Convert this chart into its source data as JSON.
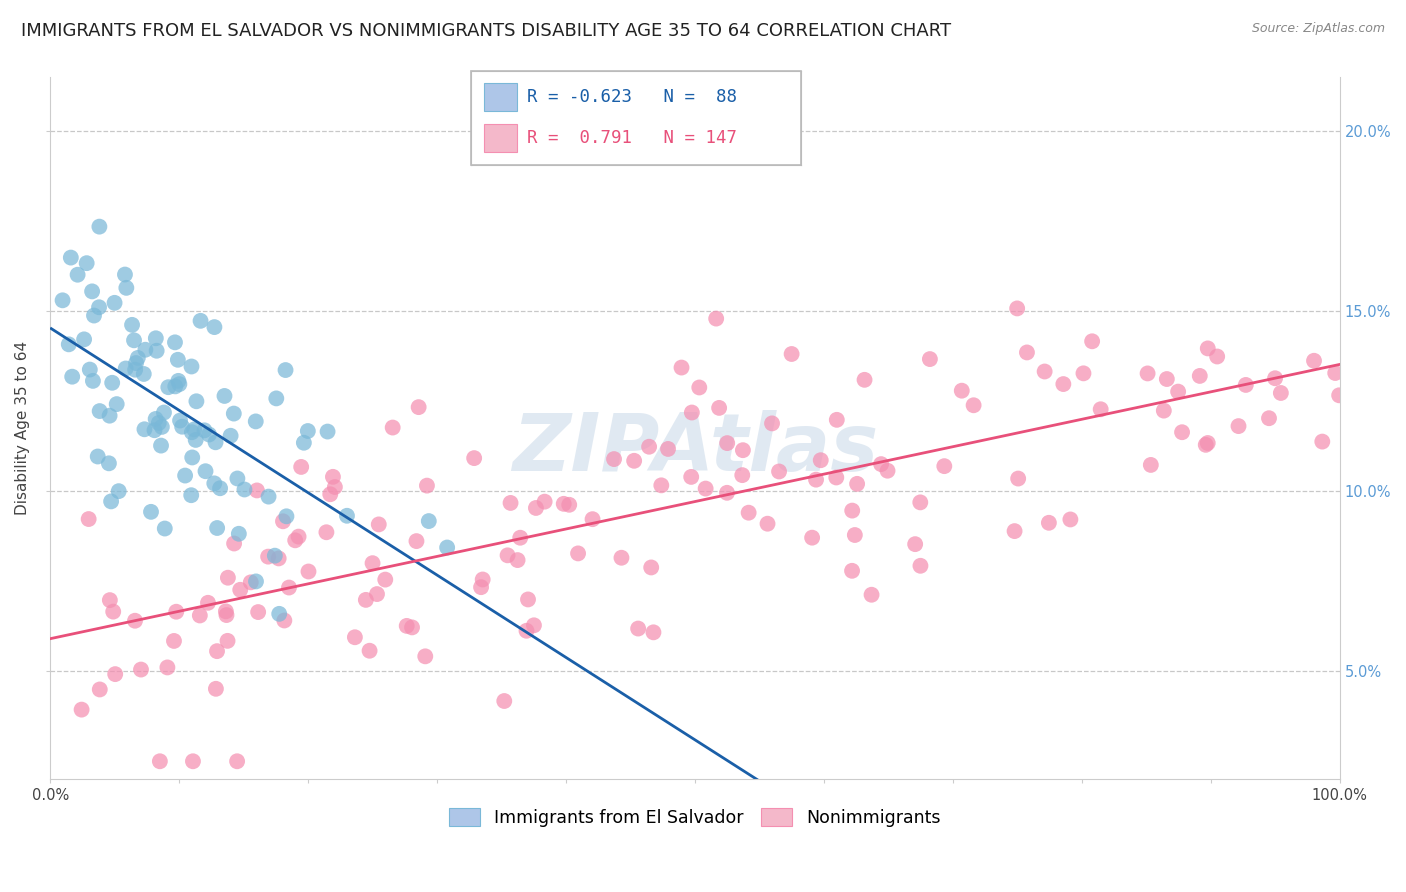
{
  "title": "IMMIGRANTS FROM EL SALVADOR VS NONIMMIGRANTS DISABILITY AGE 35 TO 64 CORRELATION CHART",
  "source": "Source: ZipAtlas.com",
  "ylabel": "Disability Age 35 to 64",
  "xlim": [
    0,
    100
  ],
  "ylim": [
    2.0,
    21.5
  ],
  "yticks": [
    5.0,
    10.0,
    15.0,
    20.0
  ],
  "ytick_labels": [
    "5.0%",
    "10.0%",
    "15.0%",
    "20.0%"
  ],
  "xtick_positions": [
    0,
    10,
    20,
    30,
    40,
    50,
    60,
    70,
    80,
    90,
    100
  ],
  "xtick_labels_show": [
    "0.0%",
    "",
    "",
    "",
    "",
    "",
    "",
    "",
    "",
    "",
    "100.0%"
  ],
  "legend_items": [
    {
      "label": "Immigrants from El Salvador",
      "color": "#aec6e8"
    },
    {
      "label": "Nonimmigrants",
      "color": "#f4b8ca"
    }
  ],
  "series1": {
    "name": "Immigrants from El Salvador",
    "color": "#7ab8d8",
    "R": -0.623,
    "N": 88,
    "line_color": "#1a5fa8",
    "x_range": [
      0,
      35
    ],
    "y_mean": 12.0,
    "y_std": 2.2
  },
  "series2": {
    "name": "Nonimmigrants",
    "color": "#f48fb1",
    "R": 0.791,
    "N": 147,
    "line_color": "#e8507a",
    "x_range": [
      0,
      100
    ],
    "y_mean": 9.5,
    "y_std": 3.2
  },
  "watermark": "ZIPAtlas",
  "background_color": "#ffffff",
  "grid_color": "#c8c8c8",
  "title_fontsize": 13,
  "axis_fontsize": 11,
  "tick_fontsize": 10.5,
  "legend_fontsize": 12.5
}
